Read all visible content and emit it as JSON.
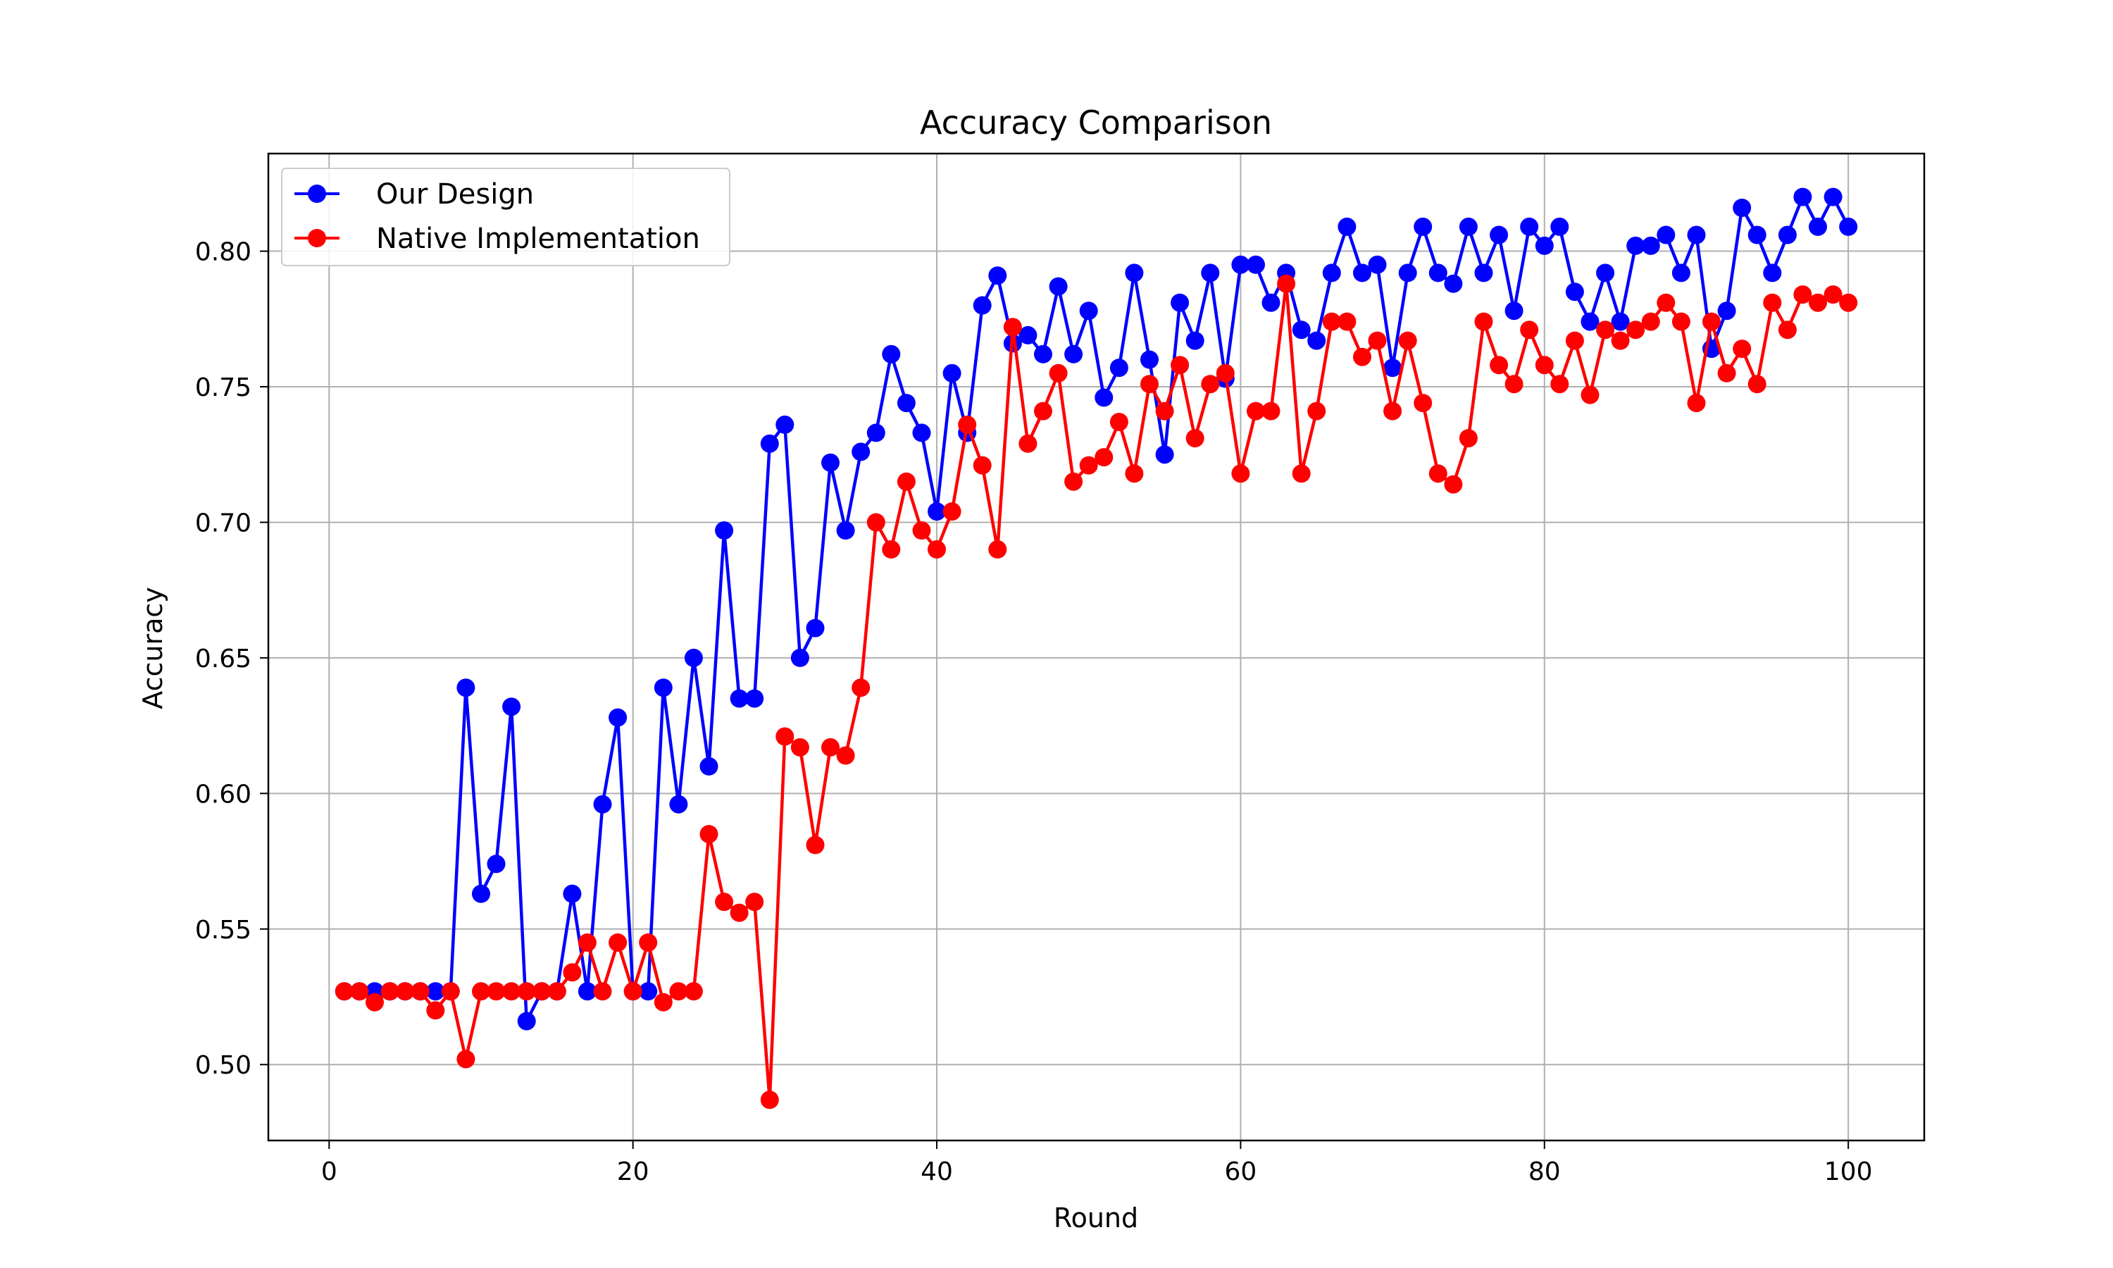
{
  "chart_data": {
    "type": "line",
    "title": "Accuracy Comparison",
    "xlabel": "Round",
    "ylabel": "Accuracy",
    "xlim": [
      -4,
      105
    ],
    "ylim": [
      0.472,
      0.836
    ],
    "xticks": [
      0,
      20,
      40,
      60,
      80,
      100
    ],
    "yticks": [
      0.5,
      0.55,
      0.6,
      0.65,
      0.7,
      0.75,
      0.8
    ],
    "xtick_labels": [
      "0",
      "20",
      "40",
      "60",
      "80",
      "100"
    ],
    "ytick_labels": [
      "0.50",
      "0.55",
      "0.60",
      "0.65",
      "0.70",
      "0.75",
      "0.80"
    ],
    "grid": true,
    "legend_position": "upper left",
    "x": [
      1,
      2,
      3,
      4,
      5,
      6,
      7,
      8,
      9,
      10,
      11,
      12,
      13,
      14,
      15,
      16,
      17,
      18,
      19,
      20,
      21,
      22,
      23,
      24,
      25,
      26,
      27,
      28,
      29,
      30,
      31,
      32,
      33,
      34,
      35,
      36,
      37,
      38,
      39,
      40,
      41,
      42,
      43,
      44,
      45,
      46,
      47,
      48,
      49,
      50,
      51,
      52,
      53,
      54,
      55,
      56,
      57,
      58,
      59,
      60,
      61,
      62,
      63,
      64,
      65,
      66,
      67,
      68,
      69,
      70,
      71,
      72,
      73,
      74,
      75,
      76,
      77,
      78,
      79,
      80,
      81,
      82,
      83,
      84,
      85,
      86,
      87,
      88,
      89,
      90,
      91,
      92,
      93,
      94,
      95,
      96,
      97,
      98,
      99,
      100
    ],
    "series": [
      {
        "name": "Our Design",
        "color": "#0000ff",
        "values": [
          0.527,
          0.527,
          0.527,
          0.527,
          0.527,
          0.527,
          0.527,
          0.527,
          0.639,
          0.563,
          0.574,
          0.632,
          0.516,
          0.527,
          0.527,
          0.563,
          0.527,
          0.596,
          0.628,
          0.527,
          0.527,
          0.639,
          0.596,
          0.65,
          0.61,
          0.697,
          0.635,
          0.635,
          0.729,
          0.736,
          0.65,
          0.661,
          0.722,
          0.697,
          0.726,
          0.733,
          0.762,
          0.744,
          0.733,
          0.704,
          0.755,
          0.733,
          0.78,
          0.791,
          0.766,
          0.769,
          0.762,
          0.787,
          0.762,
          0.778,
          0.746,
          0.757,
          0.792,
          0.76,
          0.725,
          0.781,
          0.767,
          0.792,
          0.753,
          0.795,
          0.795,
          0.781,
          0.792,
          0.771,
          0.767,
          0.792,
          0.809,
          0.792,
          0.795,
          0.757,
          0.792,
          0.809,
          0.792,
          0.788,
          0.809,
          0.792,
          0.806,
          0.778,
          0.809,
          0.802,
          0.809,
          0.785,
          0.774,
          0.792,
          0.774,
          0.802,
          0.802,
          0.806,
          0.792,
          0.806,
          0.764,
          0.778,
          0.816,
          0.806,
          0.792,
          0.806,
          0.82,
          0.809,
          0.82,
          0.809
        ]
      },
      {
        "name": "Native Implementation",
        "color": "#ff0000",
        "values": [
          0.527,
          0.527,
          0.523,
          0.527,
          0.527,
          0.527,
          0.52,
          0.527,
          0.502,
          0.527,
          0.527,
          0.527,
          0.527,
          0.527,
          0.527,
          0.534,
          0.545,
          0.527,
          0.545,
          0.527,
          0.545,
          0.523,
          0.527,
          0.527,
          0.585,
          0.56,
          0.556,
          0.56,
          0.487,
          0.621,
          0.617,
          0.581,
          0.617,
          0.614,
          0.639,
          0.7,
          0.69,
          0.715,
          0.697,
          0.69,
          0.704,
          0.736,
          0.721,
          0.69,
          0.772,
          0.729,
          0.741,
          0.755,
          0.715,
          0.721,
          0.724,
          0.737,
          0.718,
          0.751,
          0.741,
          0.758,
          0.731,
          0.751,
          0.755,
          0.718,
          0.741,
          0.741,
          0.788,
          0.718,
          0.741,
          0.774,
          0.774,
          0.761,
          0.767,
          0.741,
          0.767,
          0.744,
          0.718,
          0.714,
          0.731,
          0.774,
          0.758,
          0.751,
          0.771,
          0.758,
          0.751,
          0.767,
          0.747,
          0.771,
          0.767,
          0.771,
          0.774,
          0.781,
          0.774,
          0.744,
          0.774,
          0.755,
          0.764,
          0.751,
          0.781,
          0.771,
          0.784,
          0.781,
          0.784,
          0.781
        ]
      }
    ]
  }
}
